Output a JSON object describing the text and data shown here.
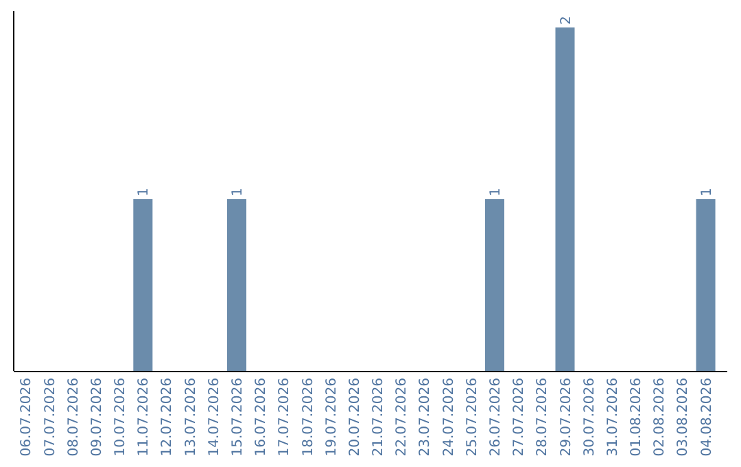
{
  "chart_data": {
    "type": "bar",
    "categories": [
      "06.07.2026",
      "07.07.2026",
      "08.07.2026",
      "09.07.2026",
      "10.07.2026",
      "11.07.2026",
      "12.07.2026",
      "13.07.2026",
      "14.07.2026",
      "15.07.2026",
      "16.07.2026",
      "17.07.2026",
      "18.07.2026",
      "19.07.2026",
      "20.07.2026",
      "21.07.2026",
      "22.07.2026",
      "23.07.2026",
      "24.07.2026",
      "25.07.2026",
      "26.07.2026",
      "27.07.2026",
      "28.07.2026",
      "29.07.2026",
      "30.07.2026",
      "31.07.2026",
      "01.08.2026",
      "02.08.2026",
      "03.08.2026",
      "04.08.2026"
    ],
    "values": [
      0,
      0,
      0,
      0,
      0,
      1,
      0,
      0,
      0,
      1,
      0,
      0,
      0,
      0,
      0,
      0,
      0,
      0,
      0,
      0,
      1,
      0,
      0,
      2,
      0,
      0,
      0,
      0,
      0,
      1
    ],
    "value_labels": [
      null,
      null,
      null,
      null,
      null,
      "1",
      null,
      null,
      null,
      "1",
      null,
      null,
      null,
      null,
      null,
      null,
      null,
      null,
      null,
      null,
      "1",
      null,
      null,
      "2",
      null,
      null,
      null,
      null,
      null,
      "1"
    ],
    "color": "#6b8cab",
    "ylim": [
      0,
      2
    ],
    "tick_labels": "x"
  }
}
